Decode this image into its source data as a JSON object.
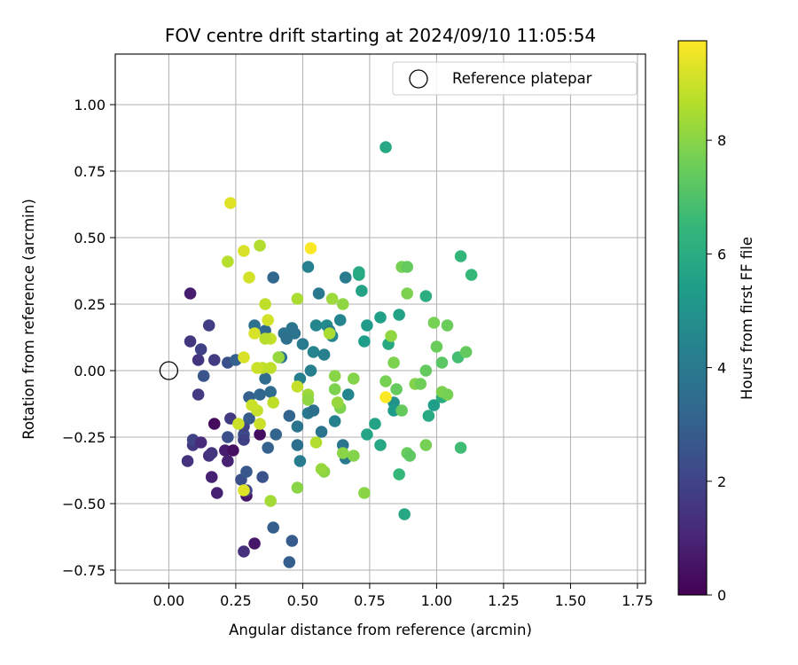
{
  "chart_data": {
    "type": "scatter",
    "title": "FOV centre drift starting at 2024/09/10 11:05:54",
    "xlabel": "Angular distance from reference (arcmin)",
    "ylabel": "Rotation from reference (arcmin)",
    "xlim": [
      -0.2,
      1.78
    ],
    "ylim": [
      -0.8,
      1.19
    ],
    "xticks": [
      0.0,
      0.25,
      0.5,
      0.75,
      1.0,
      1.25,
      1.5,
      1.75
    ],
    "xtick_labels": [
      "0.00",
      "0.25",
      "0.50",
      "0.75",
      "1.00",
      "1.25",
      "1.50",
      "1.75"
    ],
    "yticks": [
      -0.75,
      -0.5,
      -0.25,
      0.0,
      0.25,
      0.5,
      0.75,
      1.0
    ],
    "ytick_labels": [
      "−0.75",
      "−0.50",
      "−0.25",
      "0.00",
      "0.25",
      "0.50",
      "0.75",
      "1.00"
    ],
    "grid": true,
    "legend": {
      "placement": "top-right",
      "entries": [
        {
          "label": "Reference platepar",
          "marker": "open-circle"
        }
      ]
    },
    "reference_point": {
      "x": 0.0,
      "y": 0.0,
      "label": "Reference platepar"
    },
    "colorbar": {
      "label": "Hours from first FF file",
      "range": [
        0,
        9.75
      ],
      "ticks": [
        0,
        2,
        4,
        6,
        8
      ],
      "tick_labels": [
        "0",
        "2",
        "4",
        "6",
        "8"
      ],
      "colormap": "viridis",
      "colors": [
        "#440154",
        "#482878",
        "#3e4989",
        "#31688e",
        "#26828e",
        "#1f9e89",
        "#35b779",
        "#6ece58",
        "#b5de2b",
        "#fde725"
      ]
    },
    "points": [
      {
        "x": 0.08,
        "y": 0.29,
        "t": 0.8
      },
      {
        "x": 0.08,
        "y": 0.11,
        "t": 1.6
      },
      {
        "x": 0.11,
        "y": 0.04,
        "t": 1.5
      },
      {
        "x": 0.12,
        "y": 0.08,
        "t": 1.9
      },
      {
        "x": 0.17,
        "y": 0.04,
        "t": 1.7
      },
      {
        "x": 0.15,
        "y": 0.17,
        "t": 1.8
      },
      {
        "x": 0.11,
        "y": -0.09,
        "t": 1.7
      },
      {
        "x": 0.13,
        "y": -0.02,
        "t": 2.6
      },
      {
        "x": 0.22,
        "y": 0.03,
        "t": 2.4
      },
      {
        "x": 0.07,
        "y": -0.34,
        "t": 1.4
      },
      {
        "x": 0.09,
        "y": -0.28,
        "t": 1.6
      },
      {
        "x": 0.09,
        "y": -0.26,
        "t": 2.0
      },
      {
        "x": 0.12,
        "y": -0.27,
        "t": 1.2
      },
      {
        "x": 0.15,
        "y": -0.32,
        "t": 1.4
      },
      {
        "x": 0.16,
        "y": -0.31,
        "t": 1.5
      },
      {
        "x": 0.16,
        "y": -0.4,
        "t": 0.9
      },
      {
        "x": 0.17,
        "y": -0.2,
        "t": 0.3
      },
      {
        "x": 0.18,
        "y": -0.46,
        "t": 0.9
      },
      {
        "x": 0.21,
        "y": -0.3,
        "t": 0.8
      },
      {
        "x": 0.22,
        "y": -0.34,
        "t": 0.9
      },
      {
        "x": 0.22,
        "y": -0.25,
        "t": 2.4
      },
      {
        "x": 0.23,
        "y": -0.18,
        "t": 1.7
      },
      {
        "x": 0.24,
        "y": -0.3,
        "t": 0.4
      },
      {
        "x": 0.25,
        "y": 0.04,
        "t": 3.0
      },
      {
        "x": 0.27,
        "y": -0.41,
        "t": 2.4
      },
      {
        "x": 0.28,
        "y": -0.24,
        "t": 2.3
      },
      {
        "x": 0.28,
        "y": -0.26,
        "t": 1.9
      },
      {
        "x": 0.28,
        "y": -0.21,
        "t": 2.0
      },
      {
        "x": 0.28,
        "y": -0.68,
        "t": 1.3
      },
      {
        "x": 0.29,
        "y": -0.47,
        "t": 0.6
      },
      {
        "x": 0.29,
        "y": -0.45,
        "t": 2.1
      },
      {
        "x": 0.29,
        "y": -0.38,
        "t": 2.7
      },
      {
        "x": 0.3,
        "y": -0.1,
        "t": 3.0
      },
      {
        "x": 0.3,
        "y": -0.18,
        "t": 2.8
      },
      {
        "x": 0.32,
        "y": -0.65,
        "t": 0.6
      },
      {
        "x": 0.34,
        "y": -0.24,
        "t": 0.4
      },
      {
        "x": 0.35,
        "y": -0.4,
        "t": 2.5
      },
      {
        "x": 0.34,
        "y": -0.09,
        "t": 3.2
      },
      {
        "x": 0.36,
        "y": -0.03,
        "t": 3.4
      },
      {
        "x": 0.37,
        "y": -0.29,
        "t": 3.0
      },
      {
        "x": 0.38,
        "y": -0.08,
        "t": 3.4
      },
      {
        "x": 0.39,
        "y": -0.59,
        "t": 2.9
      },
      {
        "x": 0.4,
        "y": -0.24,
        "t": 3.1
      },
      {
        "x": 0.39,
        "y": 0.35,
        "t": 3.2
      },
      {
        "x": 0.32,
        "y": 0.17,
        "t": 3.6
      },
      {
        "x": 0.36,
        "y": 0.15,
        "t": 3.3
      },
      {
        "x": 0.42,
        "y": 0.05,
        "t": 3.8
      },
      {
        "x": 0.43,
        "y": 0.14,
        "t": 3.7
      },
      {
        "x": 0.44,
        "y": 0.12,
        "t": 3.6
      },
      {
        "x": 0.46,
        "y": 0.16,
        "t": 3.8
      },
      {
        "x": 0.47,
        "y": 0.14,
        "t": 3.7
      },
      {
        "x": 0.45,
        "y": -0.17,
        "t": 3.1
      },
      {
        "x": 0.45,
        "y": -0.72,
        "t": 2.9
      },
      {
        "x": 0.46,
        "y": -0.64,
        "t": 2.8
      },
      {
        "x": 0.48,
        "y": -0.28,
        "t": 3.6
      },
      {
        "x": 0.48,
        "y": -0.21,
        "t": 3.7
      },
      {
        "x": 0.49,
        "y": -0.34,
        "t": 4.1
      },
      {
        "x": 0.49,
        "y": -0.03,
        "t": 4.2
      },
      {
        "x": 0.5,
        "y": 0.1,
        "t": 4.0
      },
      {
        "x": 0.52,
        "y": 0.39,
        "t": 4.3
      },
      {
        "x": 0.52,
        "y": -0.16,
        "t": 3.9
      },
      {
        "x": 0.53,
        "y": 0.0,
        "t": 4.2
      },
      {
        "x": 0.54,
        "y": -0.15,
        "t": 3.6
      },
      {
        "x": 0.54,
        "y": 0.07,
        "t": 4.4
      },
      {
        "x": 0.55,
        "y": 0.17,
        "t": 4.5
      },
      {
        "x": 0.56,
        "y": 0.29,
        "t": 3.9
      },
      {
        "x": 0.57,
        "y": -0.23,
        "t": 3.7
      },
      {
        "x": 0.58,
        "y": 0.06,
        "t": 4.2
      },
      {
        "x": 0.59,
        "y": 0.17,
        "t": 4.7
      },
      {
        "x": 0.6,
        "y": 0.15,
        "t": 4.1
      },
      {
        "x": 0.61,
        "y": 0.13,
        "t": 4.5
      },
      {
        "x": 0.62,
        "y": -0.19,
        "t": 4.3
      },
      {
        "x": 0.64,
        "y": 0.19,
        "t": 4.4
      },
      {
        "x": 0.65,
        "y": -0.28,
        "t": 3.8
      },
      {
        "x": 0.66,
        "y": -0.33,
        "t": 4.0
      },
      {
        "x": 0.66,
        "y": 0.35,
        "t": 4.1
      },
      {
        "x": 0.67,
        "y": -0.09,
        "t": 4.5
      },
      {
        "x": 0.71,
        "y": 0.36,
        "t": 5.8
      },
      {
        "x": 0.71,
        "y": 0.37,
        "t": 5.9
      },
      {
        "x": 0.72,
        "y": 0.3,
        "t": 5.6
      },
      {
        "x": 0.73,
        "y": 0.11,
        "t": 5.4
      },
      {
        "x": 0.74,
        "y": 0.17,
        "t": 5.3
      },
      {
        "x": 0.74,
        "y": -0.24,
        "t": 5.7
      },
      {
        "x": 0.77,
        "y": -0.2,
        "t": 5.6
      },
      {
        "x": 0.79,
        "y": 0.2,
        "t": 5.5
      },
      {
        "x": 0.79,
        "y": -0.28,
        "t": 5.8
      },
      {
        "x": 0.81,
        "y": 0.84,
        "t": 5.8
      },
      {
        "x": 0.82,
        "y": 0.1,
        "t": 5.9
      },
      {
        "x": 0.84,
        "y": -0.12,
        "t": 5.0
      },
      {
        "x": 0.84,
        "y": -0.15,
        "t": 5.3
      },
      {
        "x": 0.86,
        "y": 0.21,
        "t": 5.6
      },
      {
        "x": 0.86,
        "y": -0.39,
        "t": 6.5
      },
      {
        "x": 0.88,
        "y": -0.54,
        "t": 5.8
      },
      {
        "x": 0.96,
        "y": 0.28,
        "t": 6.1
      },
      {
        "x": 0.97,
        "y": -0.17,
        "t": 5.9
      },
      {
        "x": 0.99,
        "y": -0.13,
        "t": 5.4
      },
      {
        "x": 1.02,
        "y": -0.1,
        "t": 6.0
      },
      {
        "x": 1.08,
        "y": 0.05,
        "t": 6.8
      },
      {
        "x": 1.09,
        "y": 0.43,
        "t": 6.4
      },
      {
        "x": 1.09,
        "y": -0.29,
        "t": 6.7
      },
      {
        "x": 1.13,
        "y": 0.36,
        "t": 6.5
      },
      {
        "x": 0.87,
        "y": 0.39,
        "t": 7.7
      },
      {
        "x": 0.89,
        "y": 0.39,
        "t": 7.4
      },
      {
        "x": 0.89,
        "y": 0.29,
        "t": 7.8
      },
      {
        "x": 0.87,
        "y": -0.15,
        "t": 7.4
      },
      {
        "x": 0.89,
        "y": -0.31,
        "t": 7.5
      },
      {
        "x": 0.9,
        "y": -0.32,
        "t": 7.3
      },
      {
        "x": 0.92,
        "y": -0.05,
        "t": 7.9
      },
      {
        "x": 0.94,
        "y": -0.05,
        "t": 7.6
      },
      {
        "x": 0.96,
        "y": 0.0,
        "t": 7.4
      },
      {
        "x": 0.96,
        "y": -0.28,
        "t": 7.7
      },
      {
        "x": 0.99,
        "y": 0.18,
        "t": 7.7
      },
      {
        "x": 1.0,
        "y": 0.09,
        "t": 7.5
      },
      {
        "x": 1.02,
        "y": 0.03,
        "t": 7.2
      },
      {
        "x": 1.02,
        "y": -0.08,
        "t": 7.8
      },
      {
        "x": 1.04,
        "y": 0.17,
        "t": 7.5
      },
      {
        "x": 1.04,
        "y": -0.09,
        "t": 7.7
      },
      {
        "x": 1.11,
        "y": 0.07,
        "t": 7.4
      },
      {
        "x": 0.85,
        "y": -0.07,
        "t": 7.4
      },
      {
        "x": 0.81,
        "y": -0.04,
        "t": 7.7
      },
      {
        "x": 0.83,
        "y": 0.13,
        "t": 8.1
      },
      {
        "x": 0.84,
        "y": 0.03,
        "t": 7.8
      },
      {
        "x": 0.73,
        "y": -0.46,
        "t": 8.0
      },
      {
        "x": 0.69,
        "y": -0.03,
        "t": 7.9
      },
      {
        "x": 0.69,
        "y": -0.32,
        "t": 7.9
      },
      {
        "x": 0.65,
        "y": 0.25,
        "t": 8.1
      },
      {
        "x": 0.65,
        "y": -0.31,
        "t": 8.0
      },
      {
        "x": 0.64,
        "y": -0.14,
        "t": 7.8
      },
      {
        "x": 0.63,
        "y": -0.12,
        "t": 8.2
      },
      {
        "x": 0.62,
        "y": -0.07,
        "t": 7.8
      },
      {
        "x": 0.62,
        "y": -0.02,
        "t": 8.0
      },
      {
        "x": 0.61,
        "y": 0.27,
        "t": 8.3
      },
      {
        "x": 0.6,
        "y": 0.14,
        "t": 8.5
      },
      {
        "x": 0.58,
        "y": -0.38,
        "t": 8.0
      },
      {
        "x": 0.57,
        "y": -0.37,
        "t": 8.2
      },
      {
        "x": 0.55,
        "y": -0.27,
        "t": 8.6
      },
      {
        "x": 0.52,
        "y": -0.09,
        "t": 8.3
      },
      {
        "x": 0.52,
        "y": -0.11,
        "t": 8.1
      },
      {
        "x": 0.48,
        "y": 0.27,
        "t": 8.5
      },
      {
        "x": 0.48,
        "y": -0.06,
        "t": 8.9
      },
      {
        "x": 0.48,
        "y": -0.44,
        "t": 8.0
      },
      {
        "x": 0.41,
        "y": 0.05,
        "t": 8.2
      },
      {
        "x": 0.39,
        "y": -0.12,
        "t": 8.8
      },
      {
        "x": 0.38,
        "y": 0.12,
        "t": 8.9
      },
      {
        "x": 0.38,
        "y": -0.49,
        "t": 8.4
      },
      {
        "x": 0.37,
        "y": 0.19,
        "t": 9.1
      },
      {
        "x": 0.36,
        "y": 0.25,
        "t": 8.8
      },
      {
        "x": 0.36,
        "y": 0.12,
        "t": 8.7
      },
      {
        "x": 0.35,
        "y": 0.01,
        "t": 8.8
      },
      {
        "x": 0.34,
        "y": 0.47,
        "t": 8.6
      },
      {
        "x": 0.34,
        "y": -0.2,
        "t": 9.0
      },
      {
        "x": 0.33,
        "y": 0.01,
        "t": 9.0
      },
      {
        "x": 0.33,
        "y": -0.15,
        "t": 8.9
      },
      {
        "x": 0.32,
        "y": 0.14,
        "t": 9.2
      },
      {
        "x": 0.31,
        "y": -0.13,
        "t": 9.0
      },
      {
        "x": 0.3,
        "y": 0.35,
        "t": 9.1
      },
      {
        "x": 0.28,
        "y": 0.45,
        "t": 9.2
      },
      {
        "x": 0.28,
        "y": 0.05,
        "t": 9.2
      },
      {
        "x": 0.28,
        "y": -0.45,
        "t": 9.3
      },
      {
        "x": 0.26,
        "y": -0.2,
        "t": 9.0
      },
      {
        "x": 0.22,
        "y": 0.41,
        "t": 8.7
      },
      {
        "x": 0.23,
        "y": 0.63,
        "t": 9.3
      },
      {
        "x": 0.38,
        "y": 0.01,
        "t": 8.8
      },
      {
        "x": 0.53,
        "y": 0.46,
        "t": 9.7
      },
      {
        "x": 0.81,
        "y": -0.1,
        "t": 9.7
      }
    ]
  }
}
